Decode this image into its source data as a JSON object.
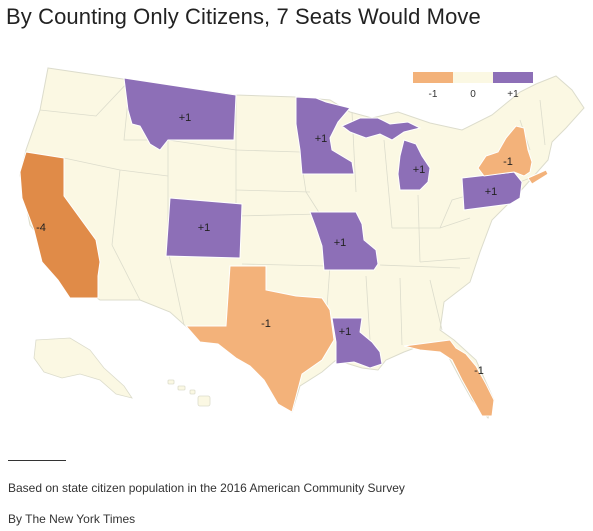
{
  "title": "By Counting Only Citizens, 7 Seats Would Move",
  "legend": [
    {
      "label": "-1",
      "color": "#f3b27a"
    },
    {
      "label": "0",
      "color": "#fbf8e3"
    },
    {
      "label": "+1",
      "color": "#8d6fb7"
    }
  ],
  "colors": {
    "base": "#fbf8e3",
    "border": "#dcdccc",
    "gain": "#8d6fb7",
    "loss_one": "#f3b27a",
    "loss_four": "#e08b48"
  },
  "states": [
    {
      "name": "California",
      "change": "-4"
    },
    {
      "name": "Montana",
      "change": "+1"
    },
    {
      "name": "Colorado",
      "change": "+1"
    },
    {
      "name": "Minnesota",
      "change": "+1"
    },
    {
      "name": "Michigan",
      "change": "+1"
    },
    {
      "name": "Missouri",
      "change": "+1"
    },
    {
      "name": "Pennsylvania",
      "change": "+1"
    },
    {
      "name": "Louisiana",
      "change": "+1"
    },
    {
      "name": "Texas",
      "change": "-1"
    },
    {
      "name": "New York",
      "change": "-1"
    },
    {
      "name": "Florida",
      "change": "-1"
    }
  ],
  "footer": {
    "source": "Based on state citizen population in the 2016 American Community Survey",
    "credit": "By The New York Times"
  }
}
